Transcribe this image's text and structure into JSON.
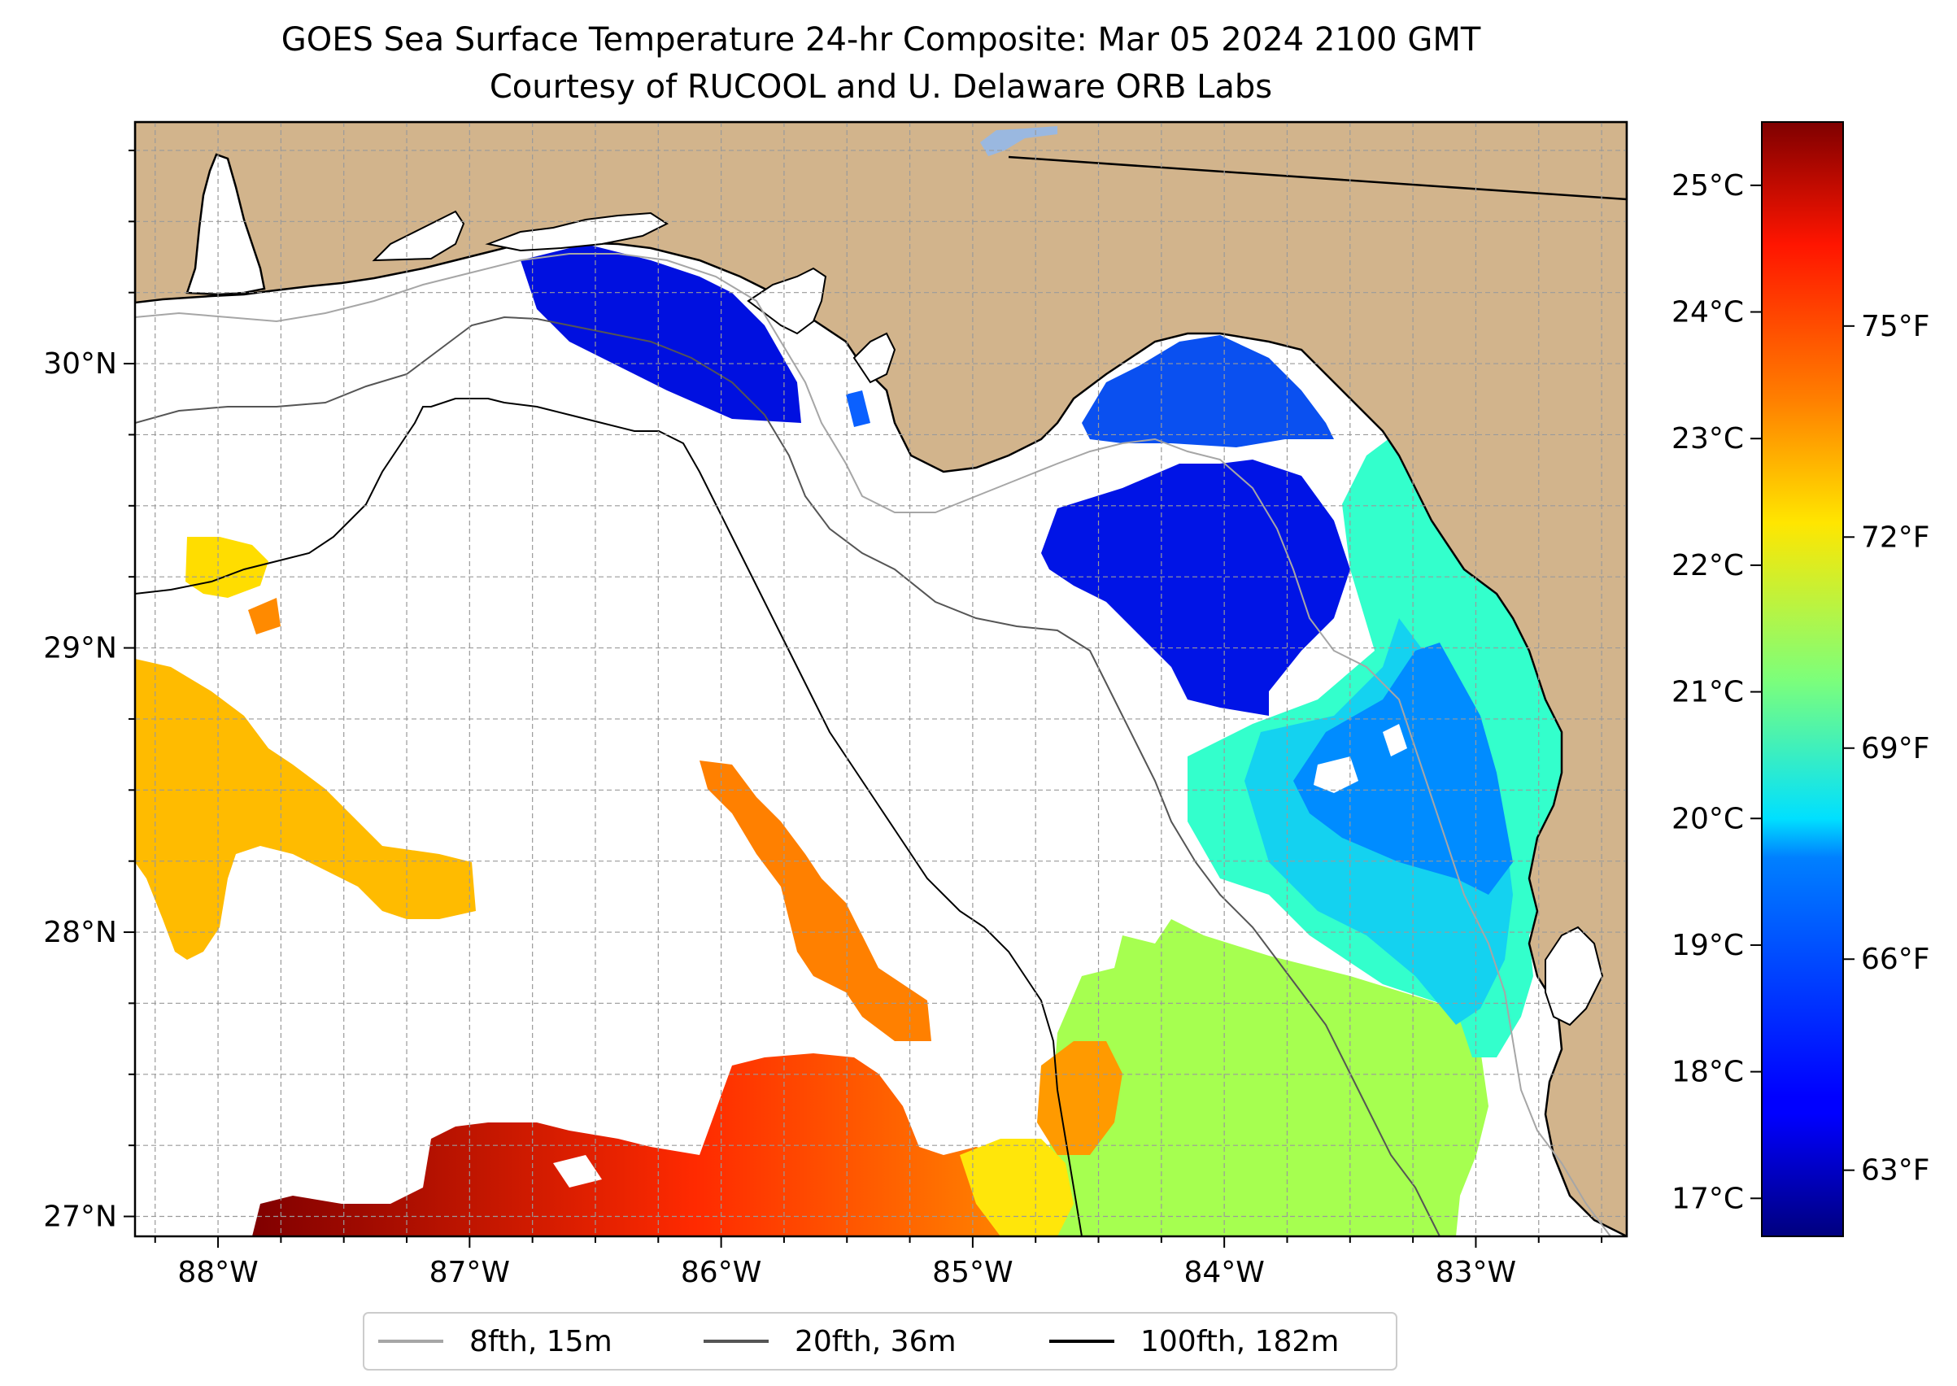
{
  "title": {
    "line1": "GOES Sea Surface Temperature 24-hr Composite: Mar 05 2024 2100 GMT",
    "line2": "Courtesy of RUCOOL and U. Delaware ORB Labs"
  },
  "map": {
    "lon_range": [
      -88.33,
      -82.4
    ],
    "lat_range": [
      26.93,
      30.85
    ],
    "lon_ticks": [
      {
        "value": -88,
        "label": "88°W"
      },
      {
        "value": -87,
        "label": "87°W"
      },
      {
        "value": -86,
        "label": "86°W"
      },
      {
        "value": -85,
        "label": "85°W"
      },
      {
        "value": -84,
        "label": "84°W"
      },
      {
        "value": -83,
        "label": "83°W"
      }
    ],
    "lat_ticks": [
      {
        "value": 27,
        "label": "27°N"
      },
      {
        "value": 28,
        "label": "28°N"
      },
      {
        "value": 29,
        "label": "29°N"
      },
      {
        "value": 30,
        "label": "30°N"
      }
    ],
    "grid": "dashed, every 0.25 degree",
    "colors": {
      "land": "#d2b48c",
      "lake": "#9ab8e0",
      "ocean_no_data": "#ffffff"
    }
  },
  "colorbar": {
    "colormap": "jet",
    "range_c": [
      16.7,
      25.5
    ],
    "celsius_ticks": [
      {
        "value": 17,
        "label": "17°C"
      },
      {
        "value": 18,
        "label": "18°C"
      },
      {
        "value": 19,
        "label": "19°C"
      },
      {
        "value": 20,
        "label": "20°C"
      },
      {
        "value": 21,
        "label": "21°C"
      },
      {
        "value": 22,
        "label": "22°C"
      },
      {
        "value": 23,
        "label": "23°C"
      },
      {
        "value": 24,
        "label": "24°C"
      },
      {
        "value": 25,
        "label": "25°C"
      }
    ],
    "fahrenheit_ticks": [
      {
        "value": 63,
        "label": "63°F"
      },
      {
        "value": 66,
        "label": "66°F"
      },
      {
        "value": 69,
        "label": "69°F"
      },
      {
        "value": 72,
        "label": "72°F"
      },
      {
        "value": 75,
        "label": "75°F"
      }
    ]
  },
  "legend": {
    "placement": "bottom-center",
    "entries": [
      {
        "label": "8fth, 15m",
        "color": "#a6a6a6"
      },
      {
        "label": "20fth, 36m",
        "color": "#555555"
      },
      {
        "label": "100fth, 182m",
        "color": "#000000"
      }
    ]
  }
}
